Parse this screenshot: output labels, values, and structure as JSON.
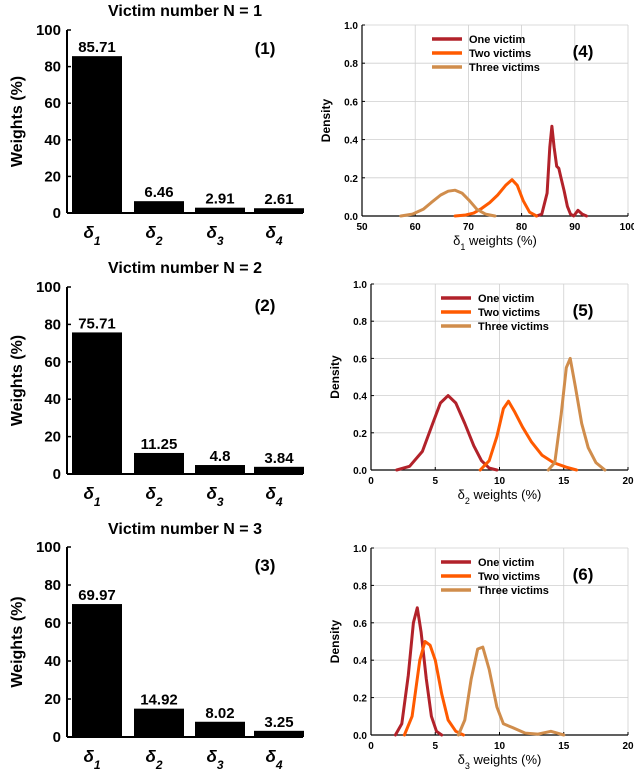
{
  "colors": {
    "bar": "#000000",
    "one": "#b2222a",
    "two": "#ff5a00",
    "three": "#d08d4c",
    "grid": "#cfcfcf"
  },
  "chart_data": [
    {
      "type": "bar",
      "panel_label": "(1)",
      "title": "Victim number N = 1",
      "ylabel": "Weights (%)",
      "ylim": [
        0,
        100
      ],
      "yticks": [
        "0",
        "20",
        "40",
        "60",
        "80",
        "100"
      ],
      "categories": [
        {
          "base": "δ",
          "sub": "1"
        },
        {
          "base": "δ",
          "sub": "2"
        },
        {
          "base": "δ",
          "sub": "3"
        },
        {
          "base": "δ",
          "sub": "4"
        }
      ],
      "values": [
        85.71,
        6.46,
        2.91,
        2.61
      ],
      "value_labels": [
        "85.71",
        "6.46",
        "2.91",
        "2.61"
      ]
    },
    {
      "type": "bar",
      "panel_label": "(2)",
      "title": "Victim number N = 2",
      "ylabel": "Weights (%)",
      "ylim": [
        0,
        100
      ],
      "yticks": [
        "0",
        "20",
        "40",
        "60",
        "80",
        "100"
      ],
      "categories": [
        {
          "base": "δ",
          "sub": "1"
        },
        {
          "base": "δ",
          "sub": "2"
        },
        {
          "base": "δ",
          "sub": "3"
        },
        {
          "base": "δ",
          "sub": "4"
        }
      ],
      "values": [
        75.71,
        11.25,
        4.8,
        3.84
      ],
      "value_labels": [
        "75.71",
        "11.25",
        "4.8",
        "3.84"
      ]
    },
    {
      "type": "bar",
      "panel_label": "(3)",
      "title": "Victim number N = 3",
      "ylabel": "Weights (%)",
      "ylim": [
        0,
        100
      ],
      "yticks": [
        "0",
        "20",
        "40",
        "60",
        "80",
        "100"
      ],
      "categories": [
        {
          "base": "δ",
          "sub": "1"
        },
        {
          "base": "δ",
          "sub": "2"
        },
        {
          "base": "δ",
          "sub": "3"
        },
        {
          "base": "δ",
          "sub": "4"
        }
      ],
      "values": [
        69.97,
        14.92,
        8.02,
        3.25
      ],
      "value_labels": [
        "69.97",
        "14.92",
        "8.02",
        "3.25"
      ]
    },
    {
      "type": "line",
      "panel_label": "(4)",
      "ylabel": "Density",
      "xlabel": {
        "base": "δ",
        "sub": "1",
        "rest": " weights (%)"
      },
      "xlim": [
        50,
        100
      ],
      "ylim": [
        0,
        1.0
      ],
      "xticks": [
        50,
        60,
        70,
        80,
        90,
        100
      ],
      "xtick_labels": [
        "50",
        "60",
        "70",
        "80",
        "90",
        "100"
      ],
      "yticks": [
        0,
        0.2,
        0.4,
        0.6,
        0.8,
        1.0
      ],
      "ytick_labels": [
        "0.0",
        "0.2",
        "0.4",
        "0.6",
        "0.8",
        "1.0"
      ],
      "grid": true,
      "legend_position": "top-left",
      "series": [
        {
          "name": "One victim",
          "color_key": "one",
          "x": [
            82.8,
            83.8,
            84.8,
            85.3,
            85.7,
            86.1,
            86.6,
            87.0,
            87.4,
            88.0,
            88.6,
            89.2,
            89.8,
            90.6,
            91.4,
            92.2
          ],
          "y": [
            0.0,
            0.01,
            0.12,
            0.36,
            0.47,
            0.36,
            0.26,
            0.25,
            0.2,
            0.13,
            0.05,
            0.01,
            0.0,
            0.03,
            0.01,
            0.0
          ]
        },
        {
          "name": "Two victims",
          "color_key": "two",
          "x": [
            67.5,
            69.5,
            71.0,
            72.5,
            74.0,
            75.5,
            77.0,
            78.2,
            79.2,
            80.3,
            81.5,
            82.8
          ],
          "y": [
            0.0,
            0.005,
            0.015,
            0.04,
            0.07,
            0.11,
            0.16,
            0.19,
            0.16,
            0.08,
            0.02,
            0.0
          ]
        },
        {
          "name": "Three victims",
          "color_key": "three",
          "x": [
            57.3,
            59.5,
            61.5,
            63.0,
            64.8,
            66.2,
            67.5,
            68.8,
            70.2,
            71.6,
            73.2,
            75.0
          ],
          "y": [
            0.0,
            0.01,
            0.035,
            0.07,
            0.11,
            0.13,
            0.135,
            0.12,
            0.08,
            0.035,
            0.01,
            0.0
          ]
        }
      ]
    },
    {
      "type": "line",
      "panel_label": "(5)",
      "ylabel": "Density",
      "xlabel": {
        "base": "δ",
        "sub": "2",
        "rest": " weights (%)"
      },
      "xlim": [
        0,
        20
      ],
      "ylim": [
        0,
        1.0
      ],
      "xticks": [
        0,
        5,
        10,
        15,
        20
      ],
      "xtick_labels": [
        "0",
        "5",
        "10",
        "15",
        "20"
      ],
      "yticks": [
        0,
        0.2,
        0.4,
        0.6,
        0.8,
        1.0
      ],
      "ytick_labels": [
        "0.0",
        "0.2",
        "0.4",
        "0.6",
        "0.8",
        "1.0"
      ],
      "grid": true,
      "legend_position": "top-left",
      "series": [
        {
          "name": "One victim",
          "color_key": "one",
          "x": [
            2.0,
            3.0,
            4.0,
            4.8,
            5.4,
            6.0,
            6.6,
            7.3,
            8.0,
            8.6,
            9.2,
            9.8
          ],
          "y": [
            0.0,
            0.02,
            0.1,
            0.25,
            0.36,
            0.4,
            0.36,
            0.25,
            0.13,
            0.05,
            0.01,
            0.0
          ]
        },
        {
          "name": "Two victims",
          "color_key": "two",
          "x": [
            8.5,
            9.2,
            9.8,
            10.3,
            10.7,
            11.2,
            11.8,
            12.5,
            13.3,
            14.2,
            15.2,
            16.0
          ],
          "y": [
            0.0,
            0.05,
            0.18,
            0.33,
            0.37,
            0.31,
            0.23,
            0.15,
            0.08,
            0.04,
            0.015,
            0.0
          ]
        },
        {
          "name": "Three victims",
          "color_key": "three",
          "x": [
            13.8,
            14.3,
            14.8,
            15.2,
            15.5,
            15.9,
            16.4,
            16.9,
            17.5,
            18.2
          ],
          "y": [
            0.0,
            0.04,
            0.3,
            0.55,
            0.6,
            0.45,
            0.25,
            0.12,
            0.04,
            0.0
          ]
        }
      ]
    },
    {
      "type": "line",
      "panel_label": "(6)",
      "ylabel": "Density",
      "xlabel": {
        "base": "δ",
        "sub": "3",
        "rest": " weights (%)"
      },
      "xlim": [
        0,
        20
      ],
      "ylim": [
        0,
        1.0
      ],
      "xticks": [
        0,
        5,
        10,
        15,
        20
      ],
      "xtick_labels": [
        "0",
        "5",
        "10",
        "15",
        "20"
      ],
      "yticks": [
        0,
        0.2,
        0.4,
        0.6,
        0.8,
        1.0
      ],
      "ytick_labels": [
        "0.0",
        "0.2",
        "0.4",
        "0.6",
        "0.8",
        "1.0"
      ],
      "grid": true,
      "legend_position": "top-left",
      "series": [
        {
          "name": "One victim",
          "color_key": "one",
          "x": [
            1.9,
            2.4,
            2.9,
            3.3,
            3.6,
            3.9,
            4.3,
            4.7,
            5.1,
            5.5
          ],
          "y": [
            0.0,
            0.06,
            0.32,
            0.6,
            0.68,
            0.55,
            0.3,
            0.1,
            0.02,
            0.0
          ]
        },
        {
          "name": "Two victims",
          "color_key": "two",
          "x": [
            2.6,
            3.2,
            3.8,
            4.2,
            4.6,
            5.0,
            5.5,
            6.0,
            6.6,
            7.2
          ],
          "y": [
            0.0,
            0.1,
            0.4,
            0.5,
            0.48,
            0.4,
            0.22,
            0.08,
            0.02,
            0.0
          ]
        },
        {
          "name": "Three victims",
          "color_key": "three",
          "x": [
            6.8,
            7.3,
            7.8,
            8.3,
            8.7,
            9.2,
            9.8,
            10.3,
            11.0,
            12.0,
            13.0,
            14.0,
            15.0
          ],
          "y": [
            0.0,
            0.08,
            0.3,
            0.46,
            0.47,
            0.35,
            0.15,
            0.06,
            0.04,
            0.01,
            0.005,
            0.02,
            0.0
          ]
        }
      ]
    }
  ]
}
